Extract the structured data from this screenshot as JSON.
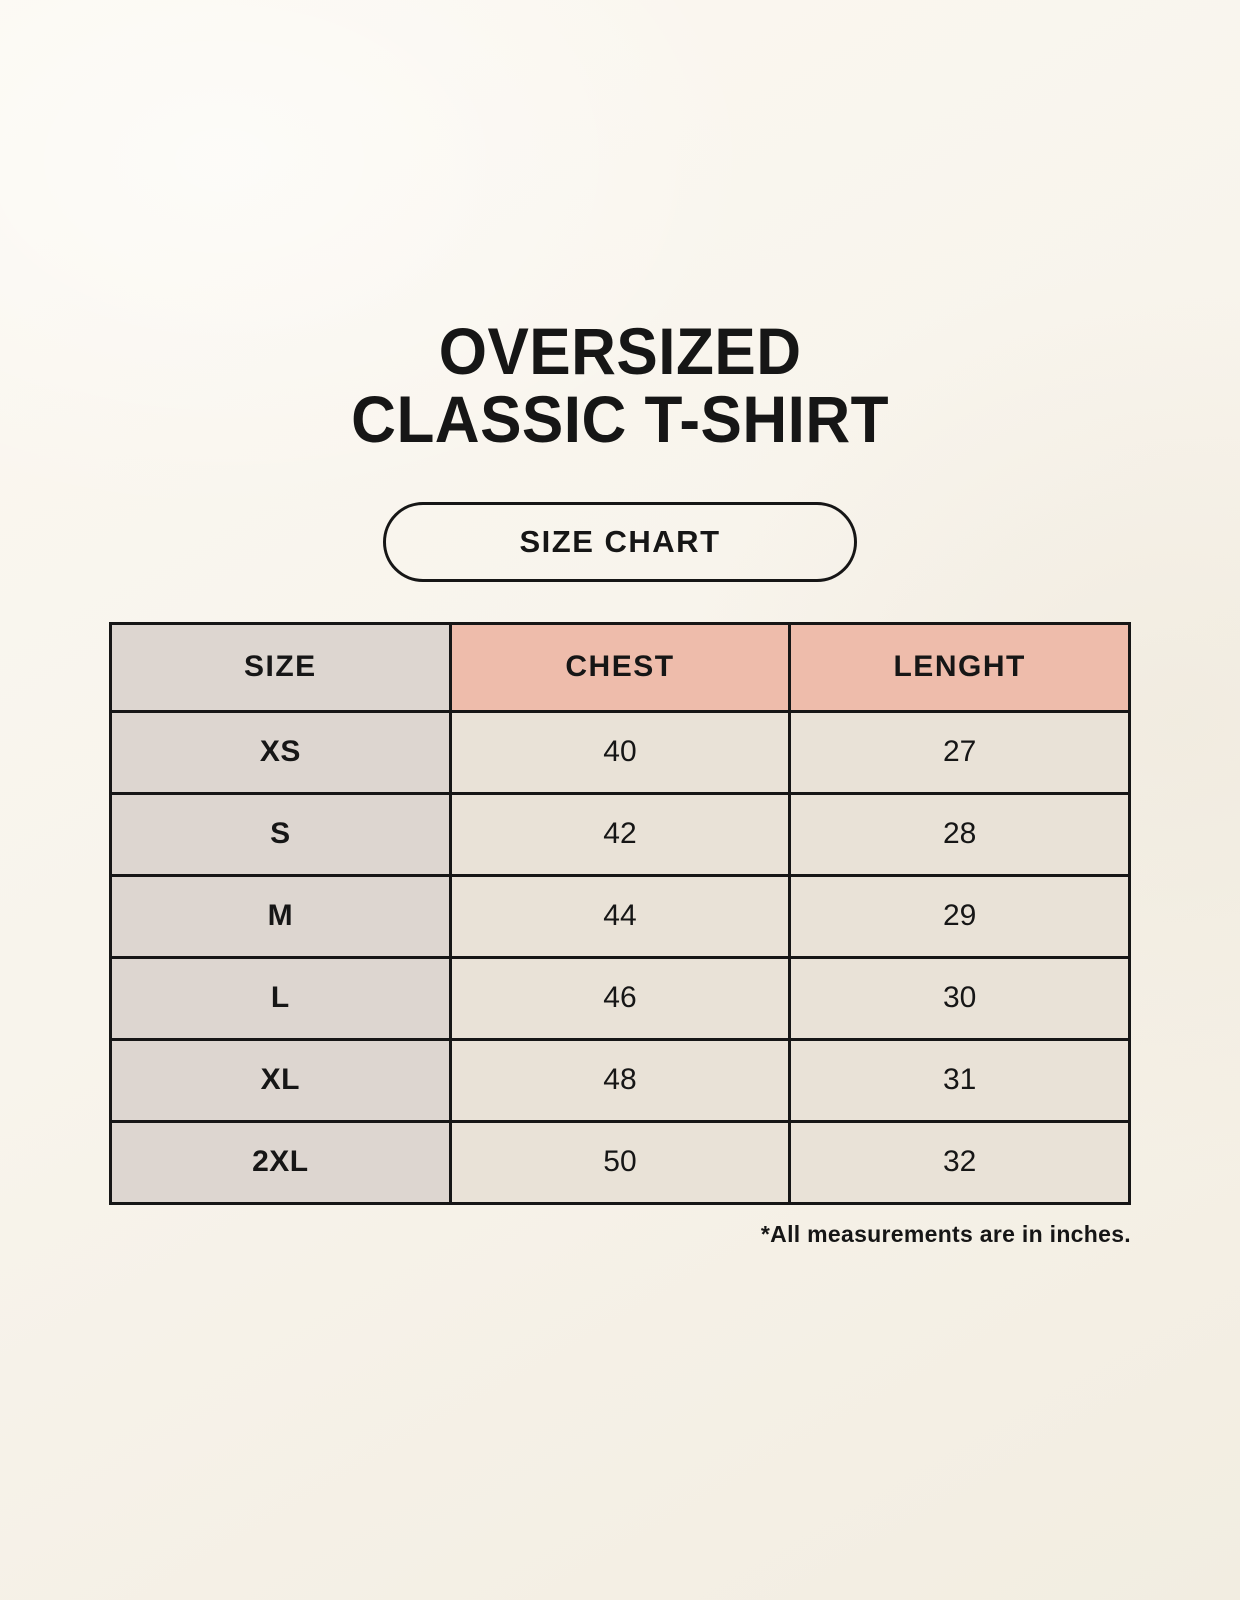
{
  "page": {
    "title_line1": "OVERSIZED",
    "title_line2": "CLASSIC T-SHIRT",
    "badge_label": "SIZE CHART",
    "footnote": "*All measurements are in inches."
  },
  "chart_data": {
    "type": "table",
    "title": "Oversized Classic T-Shirt Size Chart",
    "columns": [
      "SIZE",
      "CHEST",
      "LENGHT"
    ],
    "rows": [
      [
        "XS",
        "40",
        "27"
      ],
      [
        "S",
        "42",
        "28"
      ],
      [
        "M",
        "44",
        "29"
      ],
      [
        "L",
        "46",
        "30"
      ],
      [
        "XL",
        "48",
        "31"
      ],
      [
        "2XL",
        "50",
        "32"
      ]
    ],
    "units": "inches"
  },
  "colors": {
    "background": "#f8f4ec",
    "size_column_bg": "#ddd6d0",
    "header_accent_bg": "#eebcab",
    "cell_bg": "#e9e2d7",
    "border": "#161616",
    "text": "#161616"
  }
}
